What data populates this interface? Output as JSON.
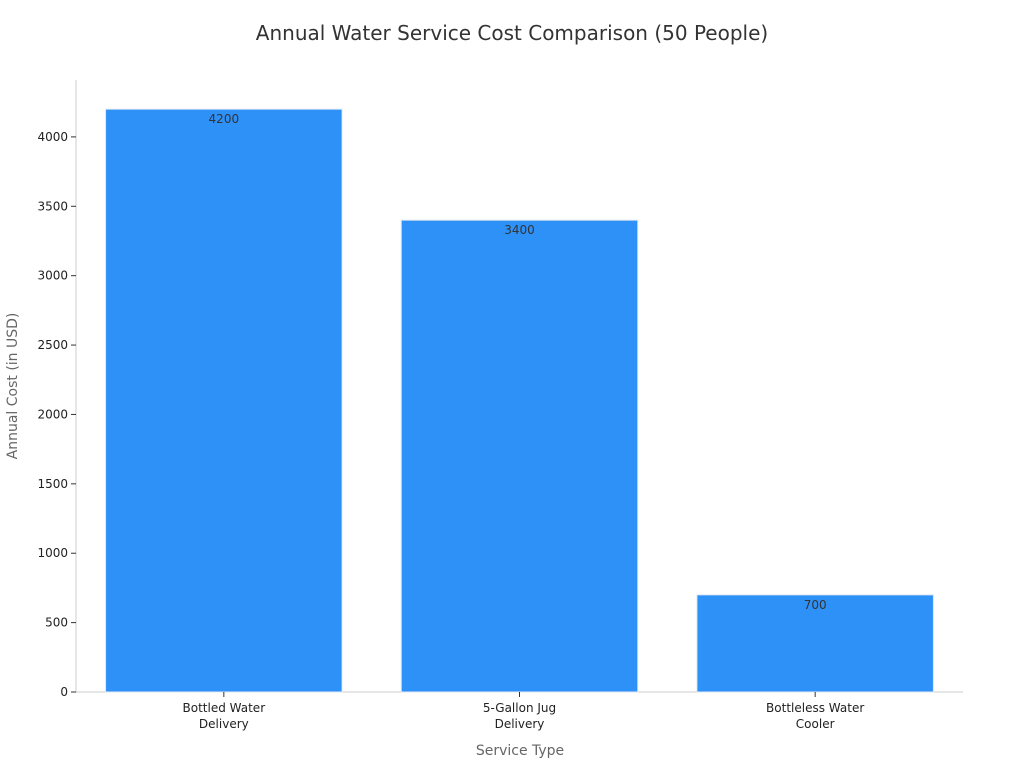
{
  "chart_data": {
    "type": "bar",
    "title": "Annual Water Service Cost Comparison (50 People)",
    "xlabel": "Service Type",
    "ylabel": "Annual Cost (in USD)",
    "categories": [
      [
        "Bottled Water",
        "Delivery"
      ],
      [
        "5-Gallon Jug",
        "Delivery"
      ],
      [
        "Bottleless Water",
        "Cooler"
      ]
    ],
    "values": [
      4200,
      3400,
      700
    ],
    "ylim": [
      0,
      4410
    ],
    "yticks": [
      0,
      500,
      1000,
      1500,
      2000,
      2500,
      3000,
      3500,
      4000
    ],
    "bar_color": "#2e91f8",
    "grid": false,
    "legend": "none"
  }
}
